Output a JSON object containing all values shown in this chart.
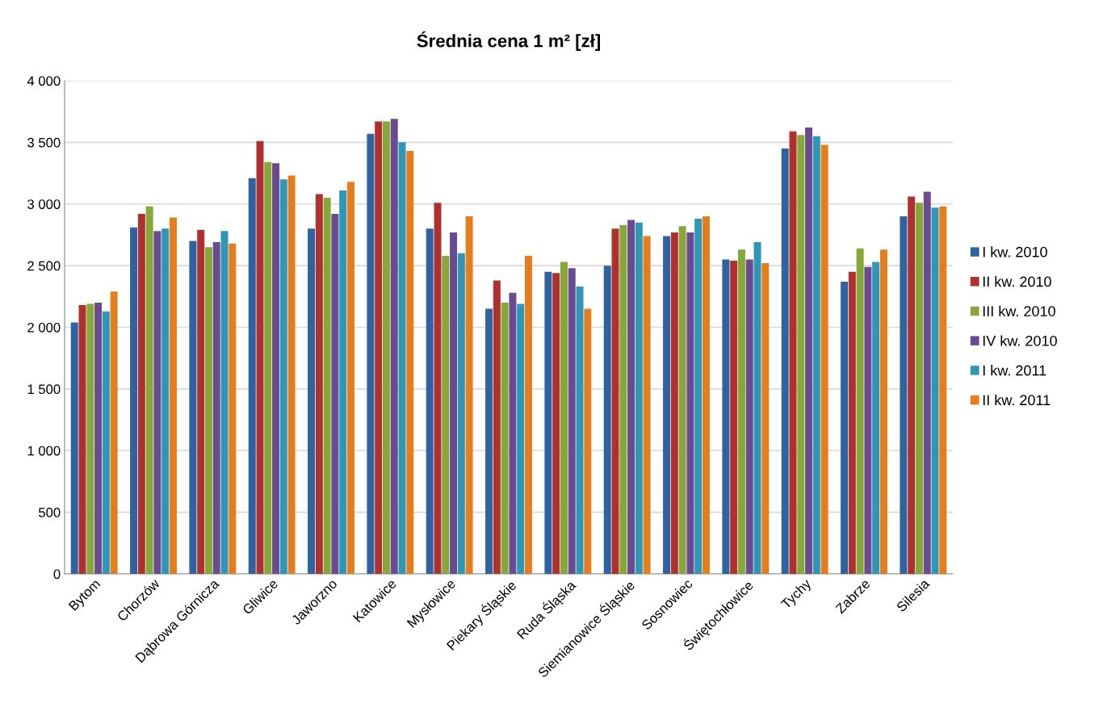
{
  "chart_data": {
    "type": "bar",
    "title": "Średnia cena 1 m² [zł]",
    "categories": [
      "Bytom",
      "Chorzów",
      "Dąbrowa Górnicza",
      "Gliwice",
      "Jaworzno",
      "Katowice",
      "Mysłowice",
      "Piekary Śląskie",
      "Ruda Śląska",
      "Siemianowice Śląskie",
      "Sosnowiec",
      "Świętochłowice",
      "Tychy",
      "Zabrze",
      "Silesia"
    ],
    "series": [
      {
        "name": "I kw. 2010",
        "color": "#2e62a0",
        "values": [
          2040,
          2810,
          2700,
          3210,
          2800,
          3570,
          2800,
          2150,
          2450,
          2500,
          2740,
          2550,
          3450,
          2370,
          2900
        ]
      },
      {
        "name": "II kw. 2010",
        "color": "#b0302f",
        "values": [
          2180,
          2920,
          2790,
          3510,
          3080,
          3670,
          3010,
          2380,
          2440,
          2800,
          2770,
          2540,
          3590,
          2450,
          3060
        ]
      },
      {
        "name": "III kw. 2010",
        "color": "#86a838",
        "values": [
          2190,
          2980,
          2650,
          3340,
          3050,
          3670,
          2580,
          2200,
          2530,
          2830,
          2820,
          2630,
          3560,
          2640,
          3010
        ]
      },
      {
        "name": "IV kw. 2010",
        "color": "#6a4a90",
        "values": [
          2200,
          2780,
          2690,
          3330,
          2920,
          3690,
          2770,
          2280,
          2480,
          2870,
          2770,
          2550,
          3620,
          2490,
          3100
        ]
      },
      {
        "name": "I kw. 2011",
        "color": "#2f96b5",
        "values": [
          2130,
          2800,
          2780,
          3200,
          3110,
          3500,
          2600,
          2190,
          2330,
          2850,
          2880,
          2690,
          3550,
          2530,
          2970
        ]
      },
      {
        "name": "II kw. 2011",
        "color": "#e67d1d",
        "values": [
          2290,
          2890,
          2680,
          3230,
          3180,
          3430,
          2900,
          2580,
          2150,
          2740,
          2900,
          2520,
          3480,
          2630,
          2980
        ]
      }
    ],
    "ylim": [
      0,
      4000
    ],
    "yticks": [
      0,
      {
        "value": 500,
        "label": "500"
      },
      {
        "value": 1000,
        "label": "1 000"
      },
      {
        "value": 1500,
        "label": "1 500"
      },
      {
        "value": 2000,
        "label": "2 000"
      },
      {
        "value": 2500,
        "label": "2 500"
      },
      {
        "value": 3000,
        "label": "3 000"
      },
      {
        "value": 3500,
        "label": "3 500"
      },
      {
        "value": 4000,
        "label": "4 000"
      }
    ],
    "grid": "y",
    "legend": "right"
  }
}
